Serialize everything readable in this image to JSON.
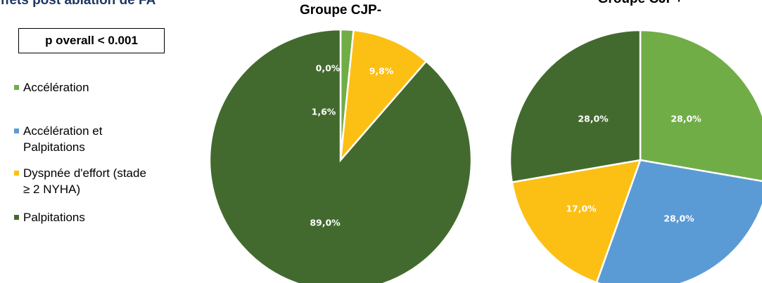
{
  "slide_title": "Effets post ablation de FA",
  "annotation": "p overall < 0.001",
  "chart_data": [
    {
      "type": "pie",
      "title": "Groupe CJP-",
      "categories": [
        "Accélération",
        "Accélération et Palpitations",
        "Dyspnée d'effort (stade ≥ 2 NYHA)",
        "Palpitations"
      ],
      "values": [
        1.6,
        0.0,
        9.8,
        89.0
      ],
      "value_labels": [
        "1,6%",
        "0,0%",
        "9,8%",
        "89,0%"
      ],
      "colors": [
        "#70ad47",
        "#5b9bd5",
        "#fcbf14",
        "#436a2e"
      ]
    },
    {
      "type": "pie",
      "title": "Groupe CJP+",
      "values": [
        28.0,
        28.0,
        17.0,
        28.0
      ],
      "value_labels": [
        "28,0%",
        "28,0%",
        "17,0%",
        "28,0%"
      ],
      "colors": [
        "#70ad47",
        "#5b9bd5",
        "#fcbf14",
        "#436a2e"
      ]
    }
  ]
}
